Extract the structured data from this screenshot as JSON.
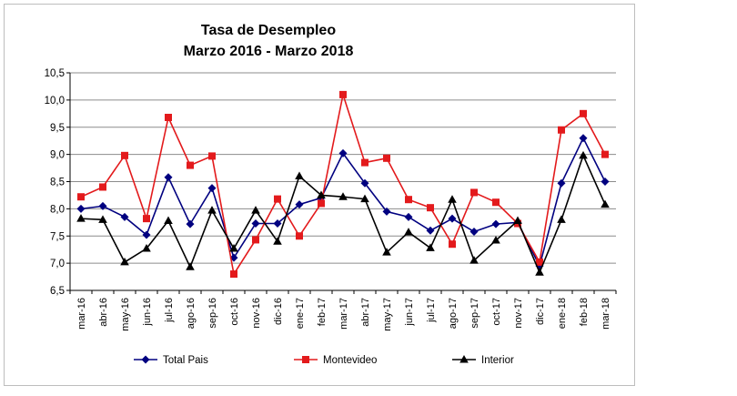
{
  "chart_data": {
    "type": "line",
    "title": [
      "Tasa de Desempleo",
      "Marzo 2016 - Marzo 2018"
    ],
    "xlabel": "",
    "ylabel": "",
    "ylim": [
      6.5,
      10.5
    ],
    "ytick_step": 0.5,
    "ytick_labels": [
      "6,5",
      "7,0",
      "7,5",
      "8,0",
      "8,5",
      "9,0",
      "9,5",
      "10,0",
      "10,5"
    ],
    "grid": "horizontal",
    "legend_position": "bottom",
    "categories": [
      "mar-16",
      "abr-16",
      "may-16",
      "jun-16",
      "jul-16",
      "ago-16",
      "sep-16",
      "oct-16",
      "nov-16",
      "dic-16",
      "ene-17",
      "feb-17",
      "mar-17",
      "abr-17",
      "may-17",
      "jun-17",
      "jul-17",
      "ago-17",
      "sep-17",
      "oct-17",
      "nov-17",
      "dic-17",
      "ene-18",
      "feb-18",
      "mar-18"
    ],
    "series": [
      {
        "name": "Total Pais",
        "color": "#000080",
        "marker": "diamond",
        "values": [
          8.0,
          8.05,
          7.85,
          7.52,
          8.58,
          7.72,
          8.38,
          7.1,
          7.73,
          7.73,
          8.08,
          8.2,
          9.02,
          8.47,
          7.95,
          7.85,
          7.6,
          7.82,
          7.58,
          7.72,
          7.75,
          6.95,
          8.47,
          9.3,
          8.5
        ]
      },
      {
        "name": "Montevideo",
        "color": "#e31a1c",
        "marker": "square",
        "values": [
          8.22,
          8.4,
          8.98,
          7.82,
          9.68,
          8.8,
          8.97,
          6.8,
          7.43,
          8.18,
          7.5,
          8.1,
          10.1,
          8.85,
          8.93,
          8.17,
          8.02,
          7.35,
          8.3,
          8.12,
          7.73,
          7.02,
          9.45,
          9.75,
          9.0
        ]
      },
      {
        "name": "Interior",
        "color": "#000000",
        "marker": "triangle",
        "values": [
          7.82,
          7.8,
          7.02,
          7.27,
          7.78,
          6.93,
          7.97,
          7.27,
          7.97,
          7.4,
          8.6,
          8.25,
          8.22,
          8.18,
          7.2,
          7.57,
          7.28,
          8.17,
          7.05,
          7.42,
          7.78,
          6.83,
          7.8,
          8.98,
          8.08
        ]
      }
    ]
  }
}
